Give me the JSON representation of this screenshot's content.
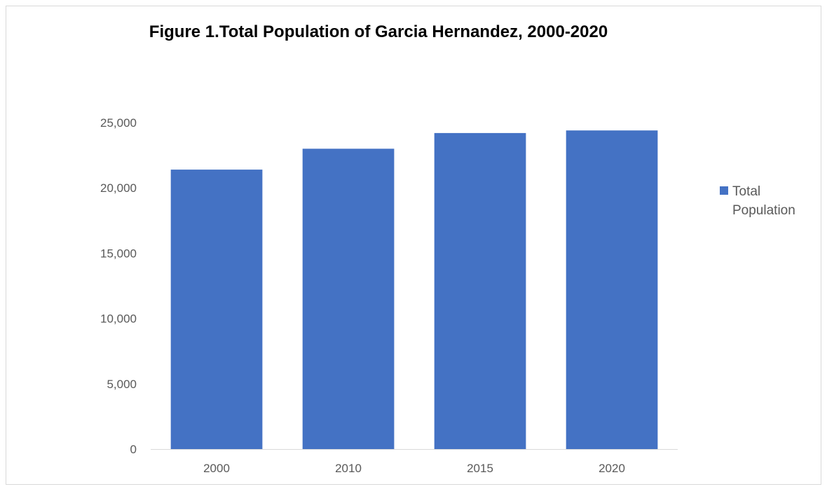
{
  "chart_data": {
    "type": "bar",
    "title": "Figure 1.Total Population of Garcia Hernandez, 2000-2020",
    "categories": [
      "2000",
      "2010",
      "2015",
      "2020"
    ],
    "series": [
      {
        "name": "Total Population",
        "values": [
          21400,
          23000,
          24200,
          24400
        ],
        "color": "#4472c4"
      }
    ],
    "ylim": [
      0,
      25000
    ],
    "yticks": [
      0,
      5000,
      10000,
      15000,
      20000,
      25000
    ],
    "ytick_labels": [
      "0",
      "5,000",
      "10,000",
      "15,000",
      "20,000",
      "25,000"
    ],
    "grid": false,
    "legend": {
      "position": "right",
      "label_lines": [
        "Total",
        "Population"
      ]
    }
  }
}
